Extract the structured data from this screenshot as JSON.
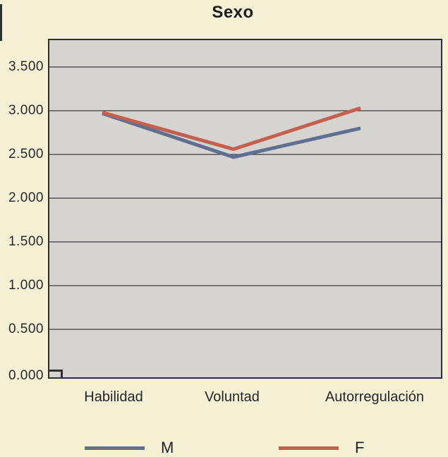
{
  "page": {
    "background": "#f6f0d4",
    "title": "Sexo"
  },
  "chart_data": {
    "type": "line",
    "title": "Sexo",
    "categories": [
      "Habilidad",
      "Voluntad",
      "Autorregulación"
    ],
    "series": [
      {
        "name": "M",
        "color": "#5f6f92",
        "values": [
          2.97,
          2.47,
          2.8
        ]
      },
      {
        "name": "F",
        "color": "#c4604d",
        "values": [
          2.98,
          2.56,
          3.03
        ]
      }
    ],
    "y_ticks": [
      "3.500",
      "3.000",
      "2.500",
      "2.000",
      "1.500",
      "1.000",
      "0.500",
      "0.000"
    ],
    "y_tick_values": [
      3.5,
      3.0,
      2.5,
      2.0,
      1.5,
      1.0,
      0.5,
      0.0
    ],
    "ylim": [
      0,
      3.82
    ],
    "xlabel": "",
    "ylabel": "",
    "grid": true,
    "grid_color": "#3a3a3c",
    "plot_background": "#d5d4d0",
    "legend_position": "bottom"
  },
  "legend": {
    "items": [
      {
        "label": "M",
        "color": "#5f6f92"
      },
      {
        "label": "F",
        "color": "#c4604d"
      }
    ]
  }
}
